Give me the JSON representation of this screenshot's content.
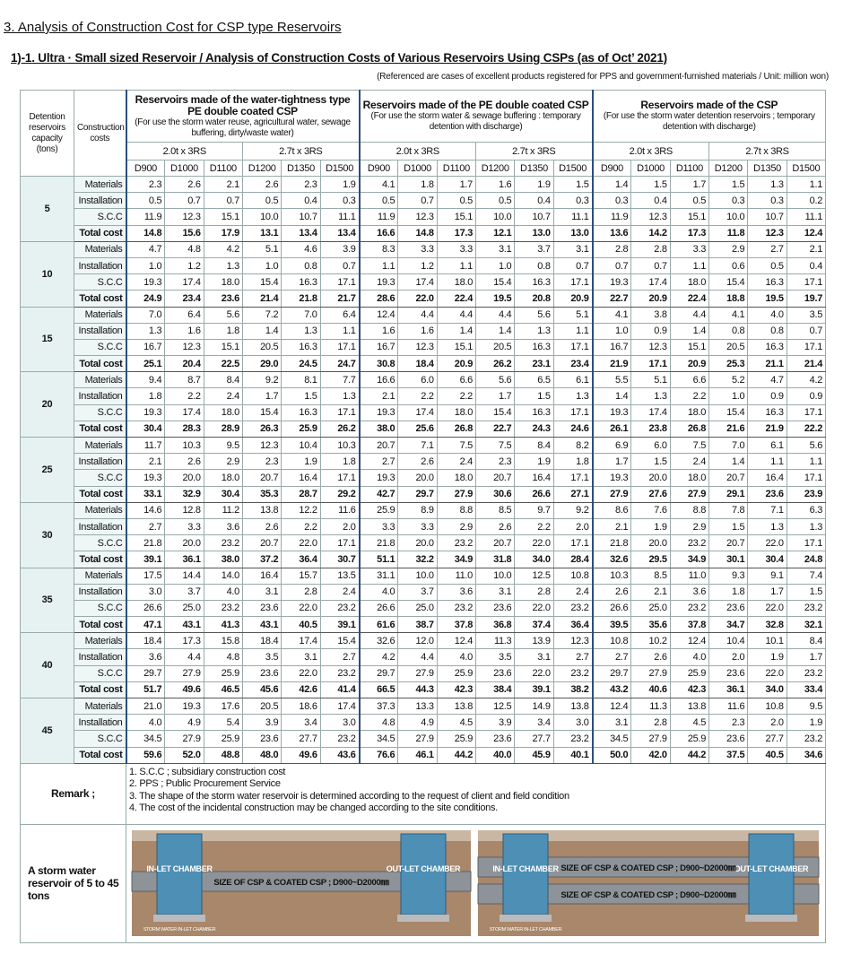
{
  "title": "3. Analysis of Construction Cost for CSP type Reservoirs",
  "subtitle": "1)-1. Ultra · Small sized  Reservoir / Analysis of Construction Costs of Various Reservoirs Using CSPs (as of Oct’ 2021)",
  "note": "(Referenced are cases of excellent products registered for PPS and government-furnished materials / Unit: million won)",
  "table": {
    "head_capacity": "Detention reservoirs capacity (tons)",
    "head_cost": "Construction costs",
    "groups": [
      {
        "title": "Reservoirs made of the water-tightness type PE double coated CSP",
        "desc": "(For use the storm water reuse, agricultural water, sewage buffering, dirty/waste water)"
      },
      {
        "title": "Reservoirs made of the PE double coated CSP",
        "desc": "(For use the storm water & sewage buffering : temporary detention with discharge)"
      },
      {
        "title": "Reservoirs made of the CSP",
        "desc": "(For use the storm water detention reservoirs ; temporary detention with discharge)"
      }
    ],
    "specs": [
      "2.0t x 3RS",
      "2.7t x 3RS"
    ],
    "diameters": [
      "D900",
      "D1000",
      "D1100",
      "D1200",
      "D1350",
      "D1500"
    ],
    "cost_types": [
      "Materials",
      "Installation",
      "S.C.C",
      "Total cost"
    ],
    "rows": [
      {
        "capacity": "5",
        "values": [
          [
            "2.3",
            "2.6",
            "2.1",
            "2.6",
            "2.3",
            "1.9",
            "4.1",
            "1.8",
            "1.7",
            "1.6",
            "1.9",
            "1.5",
            "1.4",
            "1.5",
            "1.7",
            "1.5",
            "1.3",
            "1.1"
          ],
          [
            "0.5",
            "0.7",
            "0.7",
            "0.5",
            "0.4",
            "0.3",
            "0.5",
            "0.7",
            "0.5",
            "0.5",
            "0.4",
            "0.3",
            "0.3",
            "0.4",
            "0.5",
            "0.3",
            "0.3",
            "0.2"
          ],
          [
            "11.9",
            "12.3",
            "15.1",
            "10.0",
            "10.7",
            "11.1",
            "11.9",
            "12.3",
            "15.1",
            "10.0",
            "10.7",
            "11.1",
            "11.9",
            "12.3",
            "15.1",
            "10.0",
            "10.7",
            "11.1"
          ],
          [
            "14.8",
            "15.6",
            "17.9",
            "13.1",
            "13.4",
            "13.4",
            "16.6",
            "14.8",
            "17.3",
            "12.1",
            "13.0",
            "13.0",
            "13.6",
            "14.2",
            "17.3",
            "11.8",
            "12.3",
            "12.4"
          ]
        ]
      },
      {
        "capacity": "10",
        "values": [
          [
            "4.7",
            "4.8",
            "4.2",
            "5.1",
            "4.6",
            "3.9",
            "8.3",
            "3.3",
            "3.3",
            "3.1",
            "3.7",
            "3.1",
            "2.8",
            "2.8",
            "3.3",
            "2.9",
            "2.7",
            "2.1"
          ],
          [
            "1.0",
            "1.2",
            "1.3",
            "1.0",
            "0.8",
            "0.7",
            "1.1",
            "1.2",
            "1.1",
            "1.0",
            "0.8",
            "0.7",
            "0.7",
            "0.7",
            "1.1",
            "0.6",
            "0.5",
            "0.4"
          ],
          [
            "19.3",
            "17.4",
            "18.0",
            "15.4",
            "16.3",
            "17.1",
            "19.3",
            "17.4",
            "18.0",
            "15.4",
            "16.3",
            "17.1",
            "19.3",
            "17.4",
            "18.0",
            "15.4",
            "16.3",
            "17.1"
          ],
          [
            "24.9",
            "23.4",
            "23.6",
            "21.4",
            "21.8",
            "21.7",
            "28.6",
            "22.0",
            "22.4",
            "19.5",
            "20.8",
            "20.9",
            "22.7",
            "20.9",
            "22.4",
            "18.8",
            "19.5",
            "19.7"
          ]
        ]
      },
      {
        "capacity": "15",
        "values": [
          [
            "7.0",
            "6.4",
            "5.6",
            "7.2",
            "7.0",
            "6.4",
            "12.4",
            "4.4",
            "4.4",
            "4.4",
            "5.6",
            "5.1",
            "4.1",
            "3.8",
            "4.4",
            "4.1",
            "4.0",
            "3.5"
          ],
          [
            "1.3",
            "1.6",
            "1.8",
            "1.4",
            "1.3",
            "1.1",
            "1.6",
            "1.6",
            "1.4",
            "1.4",
            "1.3",
            "1.1",
            "1.0",
            "0.9",
            "1.4",
            "0.8",
            "0.8",
            "0.7"
          ],
          [
            "16.7",
            "12.3",
            "15.1",
            "20.5",
            "16.3",
            "17.1",
            "16.7",
            "12.3",
            "15.1",
            "20.5",
            "16.3",
            "17.1",
            "16.7",
            "12.3",
            "15.1",
            "20.5",
            "16.3",
            "17.1"
          ],
          [
            "25.1",
            "20.4",
            "22.5",
            "29.0",
            "24.5",
            "24.7",
            "30.8",
            "18.4",
            "20.9",
            "26.2",
            "23.1",
            "23.4",
            "21.9",
            "17.1",
            "20.9",
            "25.3",
            "21.1",
            "21.4"
          ]
        ]
      },
      {
        "capacity": "20",
        "values": [
          [
            "9.4",
            "8.7",
            "8.4",
            "9.2",
            "8.1",
            "7.7",
            "16.6",
            "6.0",
            "6.6",
            "5.6",
            "6.5",
            "6.1",
            "5.5",
            "5.1",
            "6.6",
            "5.2",
            "4.7",
            "4.2"
          ],
          [
            "1.8",
            "2.2",
            "2.4",
            "1.7",
            "1.5",
            "1.3",
            "2.1",
            "2.2",
            "2.2",
            "1.7",
            "1.5",
            "1.3",
            "1.4",
            "1.3",
            "2.2",
            "1.0",
            "0.9",
            "0.9"
          ],
          [
            "19.3",
            "17.4",
            "18.0",
            "15.4",
            "16.3",
            "17.1",
            "19.3",
            "17.4",
            "18.0",
            "15.4",
            "16.3",
            "17.1",
            "19.3",
            "17.4",
            "18.0",
            "15.4",
            "16.3",
            "17.1"
          ],
          [
            "30.4",
            "28.3",
            "28.9",
            "26.3",
            "25.9",
            "26.2",
            "38.0",
            "25.6",
            "26.8",
            "22.7",
            "24.3",
            "24.6",
            "26.1",
            "23.8",
            "26.8",
            "21.6",
            "21.9",
            "22.2"
          ]
        ]
      },
      {
        "capacity": "25",
        "values": [
          [
            "11.7",
            "10.3",
            "9.5",
            "12.3",
            "10.4",
            "10.3",
            "20.7",
            "7.1",
            "7.5",
            "7.5",
            "8.4",
            "8.2",
            "6.9",
            "6.0",
            "7.5",
            "7.0",
            "6.1",
            "5.6"
          ],
          [
            "2.1",
            "2.6",
            "2.9",
            "2.3",
            "1.9",
            "1.8",
            "2.7",
            "2.6",
            "2.4",
            "2.3",
            "1.9",
            "1.8",
            "1.7",
            "1.5",
            "2.4",
            "1.4",
            "1.1",
            "1.1"
          ],
          [
            "19.3",
            "20.0",
            "18.0",
            "20.7",
            "16.4",
            "17.1",
            "19.3",
            "20.0",
            "18.0",
            "20.7",
            "16.4",
            "17.1",
            "19.3",
            "20.0",
            "18.0",
            "20.7",
            "16.4",
            "17.1"
          ],
          [
            "33.1",
            "32.9",
            "30.4",
            "35.3",
            "28.7",
            "29.2",
            "42.7",
            "29.7",
            "27.9",
            "30.6",
            "26.6",
            "27.1",
            "27.9",
            "27.6",
            "27.9",
            "29.1",
            "23.6",
            "23.9"
          ]
        ]
      },
      {
        "capacity": "30",
        "values": [
          [
            "14.6",
            "12.8",
            "11.2",
            "13.8",
            "12.2",
            "11.6",
            "25.9",
            "8.9",
            "8.8",
            "8.5",
            "9.7",
            "9.2",
            "8.6",
            "7.6",
            "8.8",
            "7.8",
            "7.1",
            "6.3"
          ],
          [
            "2.7",
            "3.3",
            "3.6",
            "2.6",
            "2.2",
            "2.0",
            "3.3",
            "3.3",
            "2.9",
            "2.6",
            "2.2",
            "2.0",
            "2.1",
            "1.9",
            "2.9",
            "1.5",
            "1.3",
            "1.3"
          ],
          [
            "21.8",
            "20.0",
            "23.2",
            "20.7",
            "22.0",
            "17.1",
            "21.8",
            "20.0",
            "23.2",
            "20.7",
            "22.0",
            "17.1",
            "21.8",
            "20.0",
            "23.2",
            "20.7",
            "22.0",
            "17.1"
          ],
          [
            "39.1",
            "36.1",
            "38.0",
            "37.2",
            "36.4",
            "30.7",
            "51.1",
            "32.2",
            "34.9",
            "31.8",
            "34.0",
            "28.4",
            "32.6",
            "29.5",
            "34.9",
            "30.1",
            "30.4",
            "24.8"
          ]
        ]
      },
      {
        "capacity": "35",
        "values": [
          [
            "17.5",
            "14.4",
            "14.0",
            "16.4",
            "15.7",
            "13.5",
            "31.1",
            "10.0",
            "11.0",
            "10.0",
            "12.5",
            "10.8",
            "10.3",
            "8.5",
            "11.0",
            "9.3",
            "9.1",
            "7.4"
          ],
          [
            "3.0",
            "3.7",
            "4.0",
            "3.1",
            "2.8",
            "2.4",
            "4.0",
            "3.7",
            "3.6",
            "3.1",
            "2.8",
            "2.4",
            "2.6",
            "2.1",
            "3.6",
            "1.8",
            "1.7",
            "1.5"
          ],
          [
            "26.6",
            "25.0",
            "23.2",
            "23.6",
            "22.0",
            "23.2",
            "26.6",
            "25.0",
            "23.2",
            "23.6",
            "22.0",
            "23.2",
            "26.6",
            "25.0",
            "23.2",
            "23.6",
            "22.0",
            "23.2"
          ],
          [
            "47.1",
            "43.1",
            "41.3",
            "43.1",
            "40.5",
            "39.1",
            "61.6",
            "38.7",
            "37.8",
            "36.8",
            "37.4",
            "36.4",
            "39.5",
            "35.6",
            "37.8",
            "34.7",
            "32.8",
            "32.1"
          ]
        ]
      },
      {
        "capacity": "40",
        "values": [
          [
            "18.4",
            "17.3",
            "15.8",
            "18.4",
            "17.4",
            "15.4",
            "32.6",
            "12.0",
            "12.4",
            "11.3",
            "13.9",
            "12.3",
            "10.8",
            "10.2",
            "12.4",
            "10.4",
            "10.1",
            "8.4"
          ],
          [
            "3.6",
            "4.4",
            "4.8",
            "3.5",
            "3.1",
            "2.7",
            "4.2",
            "4.4",
            "4.0",
            "3.5",
            "3.1",
            "2.7",
            "2.7",
            "2.6",
            "4.0",
            "2.0",
            "1.9",
            "1.7"
          ],
          [
            "29.7",
            "27.9",
            "25.9",
            "23.6",
            "22.0",
            "23.2",
            "29.7",
            "27.9",
            "25.9",
            "23.6",
            "22.0",
            "23.2",
            "29.7",
            "27.9",
            "25.9",
            "23.6",
            "22.0",
            "23.2"
          ],
          [
            "51.7",
            "49.6",
            "46.5",
            "45.6",
            "42.6",
            "41.4",
            "66.5",
            "44.3",
            "42.3",
            "38.4",
            "39.1",
            "38.2",
            "43.2",
            "40.6",
            "42.3",
            "36.1",
            "34.0",
            "33.4"
          ]
        ]
      },
      {
        "capacity": "45",
        "values": [
          [
            "21.0",
            "19.3",
            "17.6",
            "20.5",
            "18.6",
            "17.4",
            "37.3",
            "13.3",
            "13.8",
            "12.5",
            "14.9",
            "13.8",
            "12.4",
            "11.3",
            "13.8",
            "11.6",
            "10.8",
            "9.5"
          ],
          [
            "4.0",
            "4.9",
            "5.4",
            "3.9",
            "3.4",
            "3.0",
            "4.8",
            "4.9",
            "4.5",
            "3.9",
            "3.4",
            "3.0",
            "3.1",
            "2.8",
            "4.5",
            "2.3",
            "2.0",
            "1.9"
          ],
          [
            "34.5",
            "27.9",
            "25.9",
            "23.6",
            "27.7",
            "23.2",
            "34.5",
            "27.9",
            "25.9",
            "23.6",
            "27.7",
            "23.2",
            "34.5",
            "27.9",
            "25.9",
            "23.6",
            "27.7",
            "23.2"
          ],
          [
            "59.6",
            "52.0",
            "48.8",
            "48.0",
            "49.6",
            "43.6",
            "76.6",
            "46.1",
            "44.2",
            "40.0",
            "45.9",
            "40.1",
            "50.0",
            "42.0",
            "44.2",
            "37.5",
            "40.5",
            "34.6"
          ]
        ]
      }
    ]
  },
  "remark": {
    "label": "Remark ;",
    "items": [
      "1. S.C.C ; subsidiary construction cost",
      "2. PPS ; Public Procurement Service",
      "3. The shape of the storm water reservoir is determined according to the request of client and field condition",
      "4. The cost of the incidental construction may be changed according to the site conditions."
    ]
  },
  "illustration": {
    "label": "A storm water reservoir of 5 to 45 tons",
    "inlet": "IN-LET CHAMBER",
    "outlet": "OUT-LET CHAMBER",
    "size": "SIZE OF CSP & COATED CSP ; D900~D2000㎜",
    "inlet_caption": "STORM WATER IN-LET CHAMBER"
  }
}
